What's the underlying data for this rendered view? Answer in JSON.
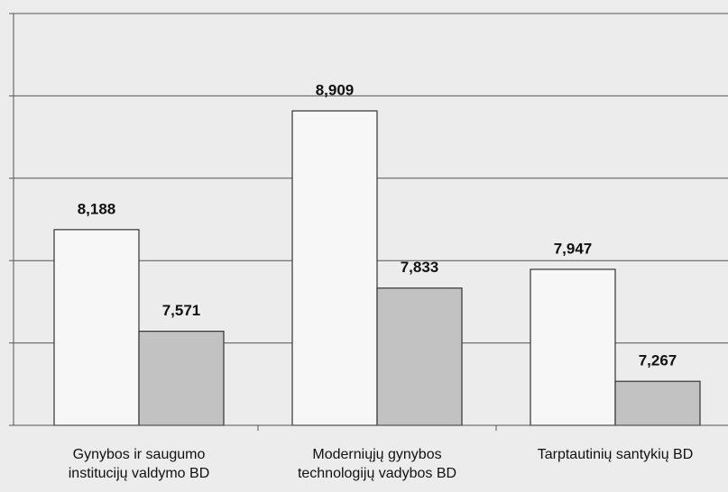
{
  "chart_data": {
    "type": "bar",
    "categories": [
      "Gynybos ir saugumo institucijų valdymo BD",
      "Moderniųjų gynybos technologijų vadybos BD",
      "Tarptautinių santykių BD"
    ],
    "series": [
      {
        "color": "#f7f7f7",
        "values": [
          8.188,
          8.909,
          7.947
        ],
        "value_labels": [
          "8,188",
          "8,909",
          "7,947"
        ]
      },
      {
        "color": "#c2c2c2",
        "values": [
          7.571,
          7.833,
          7.267
        ],
        "value_labels": [
          "7,571",
          "7,833",
          "7,267"
        ]
      }
    ],
    "ylim": [
      7,
      9.5
    ],
    "yticks": [
      7,
      7.5,
      8,
      8.5,
      9,
      9.5
    ],
    "grid": true
  }
}
